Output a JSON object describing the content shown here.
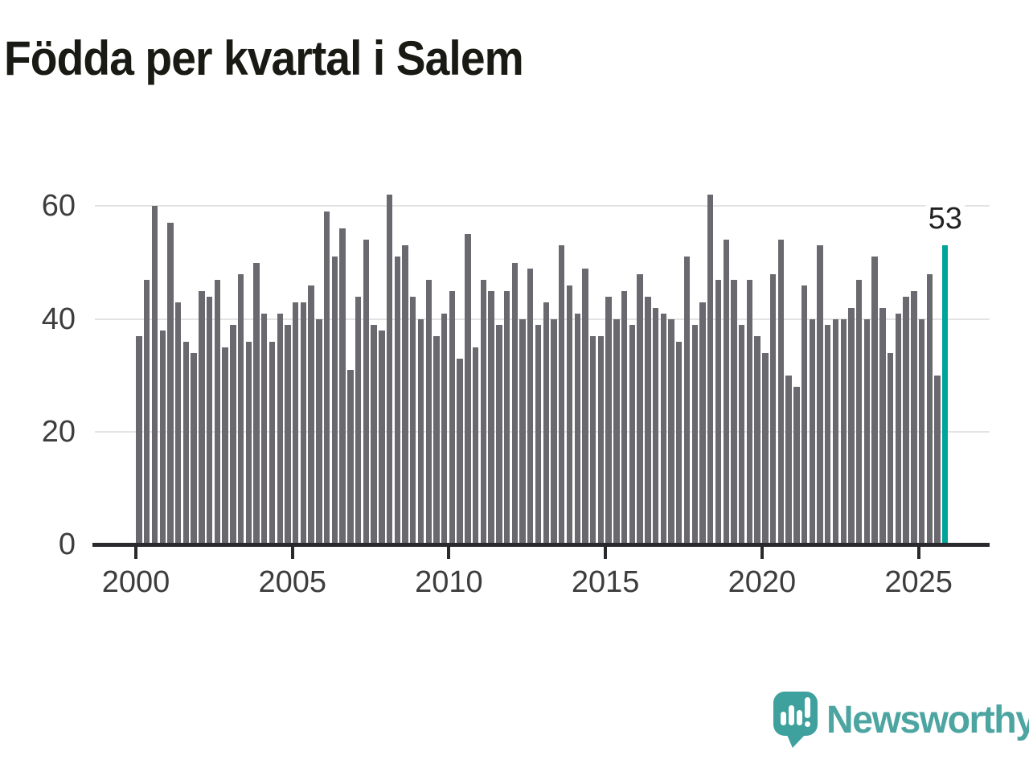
{
  "title": "Födda per kvartal i Salem",
  "chart_data": {
    "type": "bar",
    "title": "Födda per kvartal i Salem",
    "categories": [
      "2000 Q1",
      "2000 Q2",
      "2000 Q3",
      "2000 Q4",
      "2001 Q1",
      "2001 Q2",
      "2001 Q3",
      "2001 Q4",
      "2002 Q1",
      "2002 Q2",
      "2002 Q3",
      "2002 Q4",
      "2003 Q1",
      "2003 Q2",
      "2003 Q3",
      "2003 Q4",
      "2004 Q1",
      "2004 Q2",
      "2004 Q3",
      "2004 Q4",
      "2005 Q1",
      "2005 Q2",
      "2005 Q3",
      "2005 Q4",
      "2006 Q1",
      "2006 Q2",
      "2006 Q3",
      "2006 Q4",
      "2007 Q1",
      "2007 Q2",
      "2007 Q3",
      "2007 Q4",
      "2008 Q1",
      "2008 Q2",
      "2008 Q3",
      "2008 Q4",
      "2009 Q1",
      "2009 Q2",
      "2009 Q3",
      "2009 Q4",
      "2010 Q1",
      "2010 Q2",
      "2010 Q3",
      "2010 Q4",
      "2011 Q1",
      "2011 Q2",
      "2011 Q3",
      "2011 Q4",
      "2012 Q1",
      "2012 Q2",
      "2012 Q3",
      "2012 Q4",
      "2013 Q1",
      "2013 Q2",
      "2013 Q3",
      "2013 Q4",
      "2014 Q1",
      "2014 Q2",
      "2014 Q3",
      "2014 Q4",
      "2015 Q1",
      "2015 Q2",
      "2015 Q3",
      "2015 Q4",
      "2016 Q1",
      "2016 Q2",
      "2016 Q3",
      "2016 Q4",
      "2017 Q1",
      "2017 Q2",
      "2017 Q3",
      "2017 Q4",
      "2018 Q1",
      "2018 Q2",
      "2018 Q3",
      "2018 Q4",
      "2019 Q1",
      "2019 Q2",
      "2019 Q3",
      "2019 Q4",
      "2020 Q1",
      "2020 Q2",
      "2020 Q3",
      "2020 Q4",
      "2021 Q1",
      "2021 Q2",
      "2021 Q3",
      "2021 Q4",
      "2022 Q1",
      "2022 Q2",
      "2022 Q3",
      "2022 Q4",
      "2023 Q1",
      "2023 Q2",
      "2023 Q3",
      "2023 Q4",
      "2024 Q1",
      "2024 Q2",
      "2024 Q3",
      "2024 Q4",
      "2025 Q1",
      "2025 Q2",
      "2025 Q3",
      "2025 Q4"
    ],
    "values": [
      37,
      47,
      60,
      38,
      57,
      43,
      36,
      34,
      45,
      44,
      47,
      35,
      39,
      48,
      36,
      50,
      41,
      36,
      41,
      39,
      43,
      43,
      46,
      40,
      59,
      51,
      56,
      31,
      44,
      54,
      39,
      38,
      62,
      51,
      53,
      44,
      40,
      47,
      37,
      41,
      45,
      33,
      55,
      35,
      47,
      45,
      39,
      45,
      50,
      40,
      49,
      39,
      43,
      40,
      53,
      46,
      41,
      49,
      37,
      37,
      44,
      40,
      45,
      39,
      48,
      44,
      42,
      41,
      40,
      36,
      51,
      39,
      43,
      62,
      47,
      54,
      47,
      39,
      47,
      37,
      34,
      48,
      54,
      30,
      28,
      46,
      40,
      53,
      39,
      40,
      40,
      42,
      47,
      40,
      51,
      42,
      34,
      41,
      44,
      45,
      40,
      48,
      30,
      53
    ],
    "ylim": [
      0,
      65
    ],
    "yticks": [
      0,
      20,
      40,
      60
    ],
    "xticks": [
      "2000",
      "2005",
      "2010",
      "2015",
      "2020",
      "2025"
    ],
    "grid": "horizontal",
    "legend": "none",
    "bar_color": "#69696f",
    "highlight": {
      "index": 103,
      "value": 53,
      "label": "53",
      "color": "#00a49b"
    },
    "xlabel": "",
    "ylabel": ""
  },
  "annotation": {
    "label": "53"
  },
  "branding": {
    "name": "Newsworthy",
    "icon": "bar-chart-speech-bubble-icon",
    "accent_color": "#4da5a2"
  }
}
